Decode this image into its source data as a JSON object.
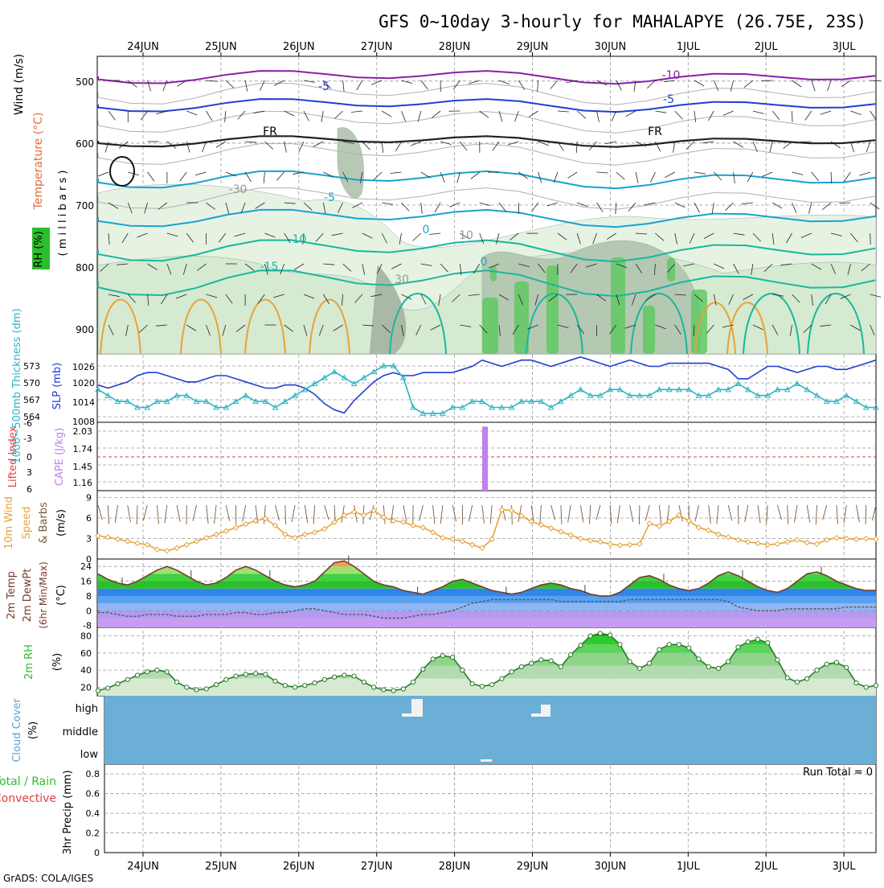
{
  "title": "GFS 0~10day 3-hourly for MAHALAPYE (26.75E, 23S)",
  "footer": "GrADS: COLA/IGES",
  "dates": [
    "24JUN",
    "25JUN",
    "26JUN",
    "27JUN",
    "28JUN",
    "29JUN",
    "30JUN",
    "1JUL",
    "2JUL",
    "3JUL"
  ],
  "colors": {
    "purple": "#8b1fa8",
    "blue": "#1f3fd0",
    "cyan": "#19a3cf",
    "teal": "#19b7a0",
    "orange": "#e8a23a",
    "brown": "#8a6a4a",
    "green": "#2bbf2b",
    "cloud": "#6baed6",
    "grid": "#999999"
  },
  "panels": {
    "upper": {
      "ylabel_wind": "Wind (m/s)",
      "ylabel_temp": "Temperature (°C)",
      "ylabel_rh": "RH (%)",
      "ylabel_p": "( m i l l i b a r s )",
      "ticks": [
        "500",
        "600",
        "700",
        "800",
        "900"
      ],
      "contour_labels": [
        "-10",
        "-5",
        "-5",
        "-5",
        "-10",
        "-15",
        "FR",
        "FR",
        "-30",
        "30",
        "10",
        "0",
        "0",
        "-30"
      ]
    },
    "thickness": {
      "ylabel_thk": "1000~500mb Thickness (dm)",
      "ylabel_slp": "SLP (mb)",
      "ticks_thk": [
        "573",
        "570",
        "567",
        "564"
      ],
      "ticks_slp": [
        "1026",
        "1020",
        "1014",
        "1008"
      ]
    },
    "cape": {
      "ylabel_li": "Lifted Index",
      "ylabel_cape": "CAPE (J/kg)",
      "ticks_li": [
        "-6",
        "-3",
        "0",
        "3",
        "6"
      ],
      "ticks_cape": [
        "2.03",
        "1.74",
        "1.45",
        "1.16"
      ]
    },
    "wind10": {
      "ylabel1": "10m Wind",
      "ylabel2": "Speed",
      "ylabel3": "& Barbs",
      "ylabel4": "(m/s)",
      "ticks": [
        "9",
        "6",
        "3",
        "0"
      ]
    },
    "temp2m": {
      "ylabel1": "2m Temp",
      "ylabel2": "2m DewPt",
      "ylabel3": "(6hr Min/Max)",
      "ylabel4": "(°C)",
      "ticks": [
        "24",
        "16",
        "8",
        "0",
        "-8"
      ]
    },
    "rh2m": {
      "ylabel1": "2m RH",
      "ylabel2": "(%)",
      "ticks": [
        "80",
        "60",
        "40",
        "20"
      ]
    },
    "cloud": {
      "ylabel1": "Cloud Cover",
      "ylabel2": "(%)",
      "levels": [
        "high",
        "middle",
        "low"
      ]
    },
    "precip": {
      "ylabel1": "Total / Rain",
      "ylabel2": "Convective",
      "ylabel3": "3hr Precip (mm)",
      "ticks": [
        "0.8",
        "0.6",
        "0.4",
        "0.2",
        "0"
      ],
      "run_total": "Run Total = 0"
    }
  },
  "chart_data": [
    {
      "type": "line",
      "title": "1000~500mb Thickness (dm) and SLP (mb)",
      "series": [
        {
          "name": "SLP (mb)",
          "values": [
            1018,
            1017,
            1018,
            1019,
            1021,
            1022,
            1022,
            1021,
            1020,
            1019,
            1019,
            1020,
            1021,
            1021,
            1020,
            1019,
            1018,
            1017,
            1017,
            1018,
            1018,
            1017,
            1015,
            1012,
            1010,
            1009,
            1013,
            1016,
            1019,
            1021,
            1022,
            1021,
            1021,
            1022,
            1022,
            1022,
            1022,
            1023,
            1024,
            1026,
            1025,
            1024,
            1025,
            1026,
            1026,
            1025,
            1024,
            1025,
            1026,
            1027,
            1026,
            1025,
            1024,
            1025,
            1026,
            1025,
            1024,
            1024,
            1025,
            1025,
            1025,
            1025,
            1025,
            1024,
            1023,
            1020,
            1020,
            1022,
            1024,
            1024,
            1023,
            1022,
            1023,
            1024,
            1024,
            1023,
            1023,
            1024,
            1025,
            1026
          ]
        },
        {
          "name": "Thickness (dm)",
          "values": [
            568,
            567,
            566,
            566,
            565,
            565,
            566,
            566,
            567,
            567,
            566,
            566,
            565,
            565,
            566,
            567,
            566,
            566,
            565,
            566,
            567,
            568,
            569,
            570,
            571,
            570,
            569,
            570,
            571,
            572,
            572,
            570,
            565,
            564,
            564,
            564,
            565,
            565,
            566,
            566,
            565,
            565,
            565,
            566,
            566,
            566,
            565,
            566,
            567,
            568,
            567,
            567,
            568,
            568,
            567,
            567,
            567,
            568,
            568,
            568,
            568,
            567,
            567,
            568,
            568,
            569,
            568,
            567,
            567,
            568,
            568,
            569,
            568,
            567,
            566,
            566,
            567,
            566,
            565,
            565
          ]
        }
      ]
    },
    {
      "type": "bar",
      "title": "CAPE (J/kg)",
      "categories": [
        "28JUN 09Z"
      ],
      "values": [
        2.03
      ],
      "ylim": [
        1.0,
        2.1
      ]
    },
    {
      "type": "line",
      "title": "10m Wind Speed (m/s)",
      "ylim": [
        0,
        10
      ],
      "values": [
        3.4,
        3.2,
        2.9,
        2.6,
        2.3,
        2.1,
        1.4,
        1.2,
        1.6,
        2.1,
        2.6,
        3.1,
        3.6,
        4.1,
        4.6,
        5.1,
        5.6,
        5.9,
        4.9,
        3.6,
        3.1,
        3.6,
        3.9,
        4.4,
        5.4,
        6.4,
        6.9,
        6.4,
        7.1,
        6.1,
        5.6,
        5.4,
        4.9,
        4.6,
        3.9,
        3.1,
        2.9,
        2.6,
        2.1,
        1.6,
        2.9,
        7.2,
        7.1,
        6.3,
        5.5,
        5.0,
        4.5,
        4.0,
        3.5,
        3.0,
        2.7,
        2.5,
        2.2,
        2.0,
        2.1,
        2.2,
        5.2,
        4.8,
        5.5,
        6.4,
        5.6,
        4.6,
        4.2,
        3.6,
        3.2,
        2.8,
        2.5,
        2.3,
        2.1,
        2.2,
        2.5,
        2.8,
        2.4,
        2.2,
        2.8,
        3.1,
        3.0,
        2.9,
        3.0,
        2.9
      ]
    },
    {
      "type": "area",
      "title": "2m Temp / DewPt (°C)",
      "ylim": [
        -8,
        28
      ],
      "series": [
        {
          "name": "2m Temp",
          "values": [
            20,
            17,
            15,
            14,
            16,
            19,
            22,
            24,
            22,
            19,
            16,
            14,
            15,
            18,
            22,
            24,
            22,
            19,
            16,
            14,
            13,
            14,
            16,
            21,
            26,
            27,
            24,
            20,
            16,
            14,
            13,
            11,
            10,
            9,
            11,
            13,
            16,
            17,
            15,
            13,
            11,
            10,
            9,
            10,
            12,
            14,
            15,
            14,
            12,
            11,
            9,
            8,
            8,
            10,
            14,
            18,
            19,
            17,
            14,
            12,
            11,
            12,
            15,
            19,
            21,
            19,
            16,
            13,
            11,
            10,
            12,
            16,
            20,
            21,
            19,
            16,
            14,
            12,
            11,
            11
          ]
        },
        {
          "name": "2m DewPt",
          "values": [
            -1,
            -1,
            -2,
            -3,
            -3,
            -2,
            -2,
            -2,
            -3,
            -3,
            -3,
            -2,
            -2,
            -2,
            -1,
            -1,
            -2,
            -2,
            -1,
            -1,
            0,
            1,
            1,
            0,
            -1,
            -2,
            -2,
            -2,
            -3,
            -4,
            -4,
            -4,
            -3,
            -2,
            -2,
            -1,
            0,
            2,
            4,
            5,
            6,
            6,
            6,
            6,
            6,
            6,
            6,
            5,
            5,
            5,
            5,
            5,
            5,
            5,
            6,
            6,
            6,
            6,
            6,
            6,
            6,
            6,
            6,
            6,
            5,
            2,
            1,
            0,
            0,
            0,
            1,
            1,
            1,
            1,
            1,
            1,
            2,
            2,
            2,
            2
          ]
        }
      ]
    },
    {
      "type": "area",
      "title": "2m RH (%)",
      "ylim": [
        10,
        90
      ],
      "values": [
        16,
        19,
        24,
        29,
        34,
        38,
        40,
        38,
        26,
        20,
        17,
        18,
        23,
        29,
        33,
        35,
        36,
        35,
        27,
        22,
        20,
        22,
        25,
        29,
        32,
        34,
        33,
        26,
        20,
        17,
        16,
        18,
        26,
        41,
        53,
        57,
        55,
        40,
        24,
        21,
        23,
        30,
        38,
        44,
        48,
        52,
        51,
        44,
        58,
        69,
        80,
        83,
        81,
        70,
        50,
        42,
        48,
        64,
        70,
        70,
        66,
        53,
        44,
        42,
        50,
        67,
        73,
        76,
        72,
        52,
        31,
        26,
        30,
        40,
        47,
        49,
        43,
        25,
        20,
        22
      ]
    },
    {
      "type": "bar",
      "title": "Cloud Cover (%)",
      "categories": [
        "high",
        "middle",
        "low"
      ],
      "values": [
        0,
        0,
        0
      ]
    },
    {
      "type": "bar",
      "title": "3hr Precip (mm)",
      "ylim": [
        0,
        0.9
      ],
      "values": [
        0,
        0,
        0,
        0,
        0,
        0,
        0,
        0,
        0,
        0
      ]
    }
  ]
}
